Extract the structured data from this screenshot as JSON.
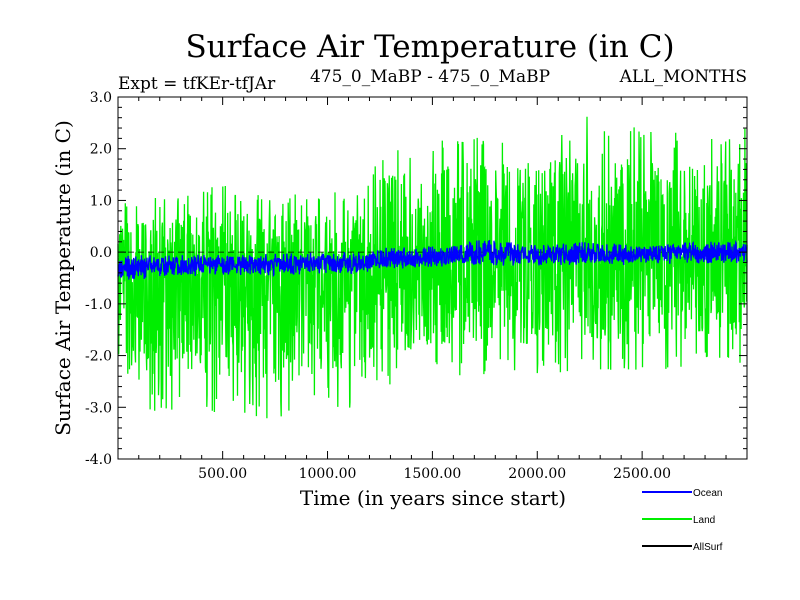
{
  "chart_data": {
    "type": "line",
    "title": "Surface Air Temperature (in C)",
    "subtitle_left": "Expt = tfKEr-tfJAr",
    "subtitle_center": "475_0_MaBP - 475_0_MaBP",
    "subtitle_right": "ALL_MONTHS",
    "xlabel": "Time (in years since start)",
    "ylabel": "Surface Air Temperature (in C)",
    "xlim": [
      1,
      3000
    ],
    "ylim": [
      -4.0,
      3.0
    ],
    "xticks": [
      500,
      1000,
      1500,
      2000,
      2500
    ],
    "xtick_labels": [
      "500.00",
      "1000.00",
      "1500.00",
      "2000.00",
      "2500.00"
    ],
    "yticks": [
      3.0,
      2.0,
      1.0,
      0.0,
      -1.0,
      -2.0,
      -3.0,
      -4.0
    ],
    "ytick_labels": [
      "3.0",
      "2.0",
      "1.0",
      "0.0",
      "-1.0",
      "-2.0",
      "-3.0",
      "-4.0"
    ],
    "zero_line": true,
    "grid": false,
    "legend_position": "bottom-right",
    "series": [
      {
        "name": "Ocean",
        "color": "#0000ff",
        "x": [
          1,
          250,
          500,
          750,
          1000,
          1200,
          1250,
          1500,
          1750,
          2000,
          2250,
          2500,
          2750,
          3000
        ],
        "mean": [
          -0.3,
          -0.28,
          -0.25,
          -0.24,
          -0.22,
          -0.2,
          -0.13,
          -0.1,
          -0.06,
          -0.07,
          -0.05,
          -0.05,
          -0.02,
          -0.02
        ],
        "y_min": [
          -0.55,
          -0.5,
          -0.45,
          -0.45,
          -0.42,
          -0.4,
          -0.35,
          -0.3,
          -0.26,
          -0.27,
          -0.25,
          -0.25,
          -0.22,
          -0.22
        ],
        "y_max": [
          -0.05,
          -0.05,
          -0.05,
          -0.03,
          0.0,
          0.0,
          0.08,
          0.12,
          0.25,
          0.15,
          0.2,
          0.15,
          0.2,
          0.2
        ]
      },
      {
        "name": "Land",
        "color": "#00ee00",
        "x": [
          1,
          250,
          500,
          750,
          1000,
          1200,
          1250,
          1500,
          1750,
          2000,
          2250,
          2500,
          2750,
          3000
        ],
        "mean": [
          -0.6,
          -0.55,
          -0.5,
          -0.5,
          -0.45,
          -0.4,
          -0.1,
          -0.1,
          -0.05,
          -0.05,
          0.0,
          0.0,
          0.0,
          0.0
        ],
        "y_min": [
          -3.2,
          -3.1,
          -3.1,
          -3.25,
          -3.0,
          -3.15,
          -2.6,
          -2.4,
          -2.4,
          -2.4,
          -2.3,
          -2.45,
          -2.2,
          -2.2
        ],
        "y_max": [
          1.0,
          1.1,
          1.3,
          1.1,
          1.15,
          1.3,
          2.0,
          2.2,
          2.4,
          2.3,
          2.65,
          2.5,
          2.2,
          2.45
        ]
      },
      {
        "name": "AllSurf",
        "color": "#000000",
        "x": [],
        "mean": [],
        "y_min": [],
        "y_max": []
      }
    ]
  }
}
